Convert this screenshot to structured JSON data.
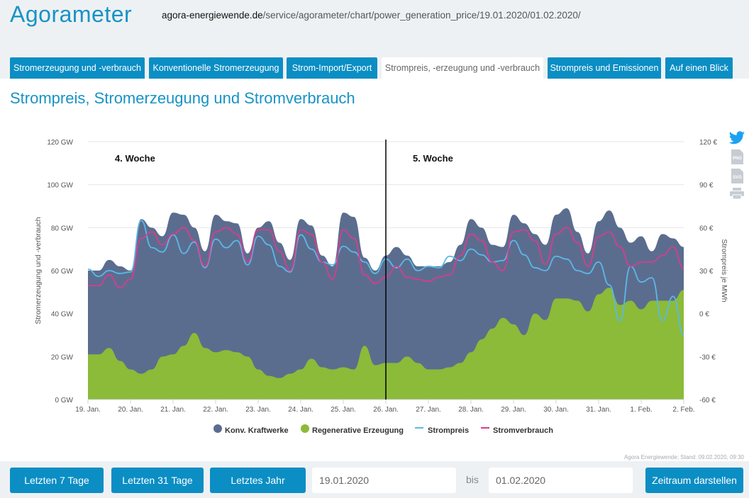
{
  "header": {
    "app_title": "Agorameter",
    "url_domain": "agora-energiewende.de",
    "url_path": "/service/agorameter/chart/power_generation_price/19.01.2020/01.02.2020/"
  },
  "tabs": [
    {
      "label": "Stromerzeugung und -verbrauch",
      "active": false
    },
    {
      "label": "Konventionelle Stromerzeugung",
      "active": false
    },
    {
      "label": "Strom-Import/Export",
      "active": false
    },
    {
      "label": "Strompreis, -erzeugung und -verbrauch",
      "active": true
    },
    {
      "label": "Strompreis und Emissionen",
      "active": false
    },
    {
      "label": "Auf einen Blick",
      "active": false
    }
  ],
  "page_title": "Strompreis, Stromerzeugung und Stromverbrauch",
  "side_icons": [
    "twitter-icon",
    "png-download-icon",
    "svg-download-icon",
    "print-icon"
  ],
  "side_icon_labels": {
    "png": "PNG",
    "svg": "SVG"
  },
  "chart_data": {
    "type": "area",
    "title": "Strompreis, Stromerzeugung und Stromverbrauch",
    "ylabel": "Stromerzeugung und -verbrauch",
    "y2label": "Strompreis je MWh",
    "ylim": [
      0,
      120
    ],
    "y2lim": [
      -60,
      120
    ],
    "yticks": [
      "0 GW",
      "20 GW",
      "40 GW",
      "60 GW",
      "80 GW",
      "100 GW",
      "120 GW"
    ],
    "y2ticks": [
      "-60 €",
      "-30 €",
      "0 €",
      "30 €",
      "60 €",
      "90 €",
      "120 €"
    ],
    "xticks": [
      "19. Jan.",
      "20. Jan.",
      "21. Jan.",
      "22. Jan.",
      "23. Jan.",
      "24. Jan.",
      "25. Jan.",
      "26. Jan.",
      "27. Jan.",
      "28. Jan.",
      "29. Jan.",
      "30. Jan.",
      "31. Jan.",
      "1. Feb.",
      "2. Feb."
    ],
    "x_unit": "days since 19. Jan. 2020 (6h steps)",
    "x": [
      0,
      0.25,
      0.5,
      0.75,
      1,
      1.25,
      1.5,
      1.75,
      2,
      2.25,
      2.5,
      2.75,
      3,
      3.25,
      3.5,
      3.75,
      4,
      4.25,
      4.5,
      4.75,
      5,
      5.25,
      5.5,
      5.75,
      6,
      6.25,
      6.5,
      6.75,
      7,
      7.25,
      7.5,
      7.75,
      8,
      8.25,
      8.5,
      8.75,
      9,
      9.25,
      9.5,
      9.75,
      10,
      10.25,
      10.5,
      10.75,
      11,
      11.25,
      11.5,
      11.75,
      12,
      12.25,
      12.5,
      12.75,
      13,
      13.25,
      13.5,
      13.75,
      14
    ],
    "annotations": [
      {
        "label": "4. Woche",
        "x": 1.5
      },
      {
        "label": "5. Woche",
        "x": 8.5
      },
      {
        "type": "vline",
        "x": 7.0
      }
    ],
    "series": [
      {
        "name": "Regenerative Erzeugung",
        "type": "area",
        "color": "#8bbb38",
        "unit": "GW",
        "values": [
          21,
          21,
          24,
          18,
          14,
          12,
          14,
          20,
          21,
          25,
          31,
          24,
          22,
          23,
          22,
          20,
          14,
          11,
          10,
          12,
          14,
          19,
          15,
          14,
          15,
          14,
          25,
          16,
          17,
          17,
          20,
          17,
          14,
          14,
          15,
          17,
          22,
          28,
          33,
          38,
          35,
          30,
          40,
          37,
          47,
          47,
          46,
          41,
          49,
          52,
          44,
          46,
          42,
          46,
          46,
          46,
          51
        ]
      },
      {
        "name": "Konv. Kraftwerke",
        "type": "area",
        "color": "#5b6d8f",
        "unit": "GW",
        "stacked_total": true,
        "values": [
          60,
          60,
          65,
          62,
          60,
          84,
          80,
          76,
          87,
          86,
          80,
          69,
          86,
          83,
          82,
          68,
          80,
          83,
          73,
          65,
          84,
          81,
          67,
          62,
          87,
          85,
          66,
          60,
          67,
          71,
          67,
          62,
          62,
          62,
          64,
          72,
          84,
          80,
          72,
          71,
          86,
          82,
          77,
          72,
          86,
          89,
          78,
          68,
          83,
          88,
          80,
          73,
          76,
          69,
          77,
          75,
          71
        ]
      },
      {
        "name": "Strompreis",
        "type": "line",
        "color": "#5bb9e8",
        "unit": "€/MWh",
        "axis": "right",
        "values": [
          31,
          26,
          30,
          28,
          29,
          65,
          46,
          43,
          55,
          42,
          50,
          32,
          52,
          46,
          51,
          34,
          54,
          48,
          33,
          29,
          55,
          45,
          36,
          34,
          47,
          43,
          36,
          28,
          38,
          32,
          38,
          30,
          33,
          32,
          40,
          37,
          45,
          41,
          36,
          37,
          51,
          41,
          32,
          30,
          40,
          38,
          30,
          28,
          36,
          20,
          -5,
          33,
          22,
          25,
          -5,
          12,
          -15
        ]
      },
      {
        "name": "Stromverbrauch",
        "type": "line",
        "color": "#d63d8e",
        "unit": "GW",
        "values": [
          53,
          53,
          58,
          52,
          56,
          75,
          78,
          72,
          77,
          80,
          74,
          62,
          78,
          80,
          77,
          64,
          79,
          79,
          69,
          60,
          79,
          77,
          64,
          56,
          79,
          75,
          58,
          54,
          57,
          62,
          57,
          56,
          55,
          57,
          58,
          67,
          77,
          74,
          64,
          60,
          78,
          79,
          74,
          63,
          77,
          80,
          73,
          62,
          76,
          78,
          71,
          62,
          64,
          64,
          67,
          71,
          61
        ]
      }
    ],
    "legend": [
      "Konv. Kraftwerke",
      "Regenerative Erzeugung",
      "Strompreis",
      "Stromverbrauch"
    ],
    "legend_position": "bottom",
    "grid": true,
    "credit": "Agora Energiewende; Stand: 09.02.2020, 09:30"
  },
  "controls": {
    "btn_7": "Letzten 7 Tage",
    "btn_31": "Letzten 31 Tage",
    "btn_year": "Letztes Jahr",
    "from_date": "19.01.2020",
    "bis": "bis",
    "to_date": "01.02.2020",
    "submit": "Zeitraum darstellen"
  },
  "colors": {
    "accent": "#0b8ec4",
    "title": "#1793c6",
    "background": "#eef1f3"
  }
}
